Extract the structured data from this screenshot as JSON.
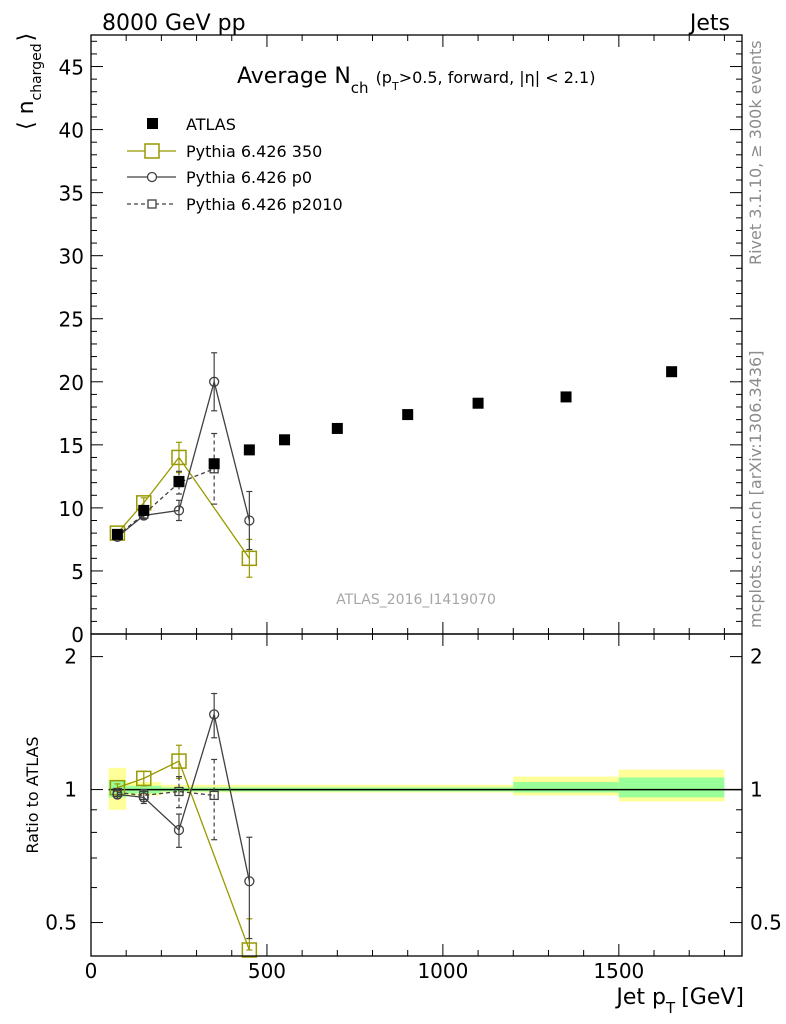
{
  "header": {
    "energy_label": "8000 GeV pp",
    "category_label": "Jets"
  },
  "side_labels": {
    "rivet": "Rivet 3.1.10, ≥ 300k events",
    "mcplots": "mcplots.cern.ch [arXiv:1306.3436]"
  },
  "watermark": "ATLAS_2016_I1419070",
  "chart_data": [
    {
      "type": "scatter",
      "panel": "main",
      "title_main": "Average N",
      "title_sub": "ch",
      "title_rest": "(p",
      "title_rest_sub": "T",
      "title_rest2": ">0.5, forward, |η| < 2.1)",
      "ylabel": "⟨ n",
      "ylabel_sub": "charged",
      "ylabel_close": "⟩",
      "xlim": [
        0,
        1850
      ],
      "ylim": [
        0,
        47.5
      ],
      "y_ticks": [
        0,
        5,
        10,
        15,
        20,
        25,
        30,
        35,
        40,
        45
      ],
      "y_tick_labels": [
        "0",
        "5",
        "10",
        "15",
        "20",
        "25",
        "30",
        "35",
        "40",
        "45"
      ],
      "legend_position": "top-left",
      "series": [
        {
          "name": "ATLAS",
          "style": "data",
          "color": "#000000",
          "x": [
            75,
            150,
            250,
            350,
            450,
            550,
            700,
            900,
            1100,
            1350,
            1650
          ],
          "y": [
            7.9,
            9.8,
            12.1,
            13.5,
            14.6,
            15.4,
            16.3,
            17.4,
            18.3,
            18.8,
            20.8
          ],
          "err": [
            0.2,
            0.2,
            0.2,
            0.2,
            0.2,
            0.2,
            0.2,
            0.2,
            0.2,
            0.2,
            0.3
          ]
        },
        {
          "name": "Pythia 6.426 350",
          "style": "big-square",
          "color": "#999900",
          "x": [
            75,
            150,
            250,
            450
          ],
          "y": [
            8.0,
            10.4,
            14.0,
            6.0
          ],
          "err": [
            0.2,
            0.4,
            1.2,
            1.5
          ]
        },
        {
          "name": "Pythia 6.426 p0",
          "style": "circle",
          "color": "#404040",
          "x": [
            75,
            150,
            250,
            350,
            450
          ],
          "y": [
            7.7,
            9.4,
            9.8,
            20.0,
            9.0
          ],
          "err": [
            0.2,
            0.3,
            0.8,
            2.3,
            2.3
          ]
        },
        {
          "name": "Pythia 6.426 p2010",
          "style": "small-square-dashed",
          "color": "#404040",
          "x": [
            75,
            150,
            250,
            350
          ],
          "y": [
            7.8,
            9.5,
            12.0,
            13.1
          ],
          "err": [
            0.2,
            0.3,
            0.9,
            2.8
          ]
        }
      ]
    },
    {
      "type": "scatter",
      "panel": "ratio",
      "ylabel": "Ratio to ATLAS",
      "xlabel": "Jet p",
      "xlabel_sub": "T",
      "xlabel_unit": "[GeV]",
      "xlim": [
        0,
        1850
      ],
      "ylim": [
        0.42,
        2.25
      ],
      "log_y": true,
      "x_ticks": [
        0,
        500,
        1000,
        1500
      ],
      "x_tick_labels": [
        "0",
        "500",
        "1000",
        "1500"
      ],
      "y_ticks": [
        0.5,
        1,
        2
      ],
      "y_tick_labels": [
        "0.5",
        "1",
        "2"
      ],
      "bands": [
        {
          "x_lo": 50,
          "x_hi": 100,
          "yellow": [
            0.9,
            1.12
          ],
          "green": [
            0.96,
            1.05
          ]
        },
        {
          "x_lo": 100,
          "x_hi": 200,
          "yellow": [
            0.97,
            1.04
          ],
          "green": [
            0.98,
            1.02
          ]
        },
        {
          "x_lo": 200,
          "x_hi": 1200,
          "yellow": [
            0.985,
            1.025
          ],
          "green": [
            0.99,
            1.012
          ]
        },
        {
          "x_lo": 1200,
          "x_hi": 1500,
          "yellow": [
            0.97,
            1.07
          ],
          "green": [
            0.985,
            1.04
          ]
        },
        {
          "x_lo": 1500,
          "x_hi": 1800,
          "yellow": [
            0.94,
            1.11
          ],
          "green": [
            0.96,
            1.065
          ]
        }
      ],
      "series": [
        {
          "name": "Pythia 6.426 350",
          "style": "big-square",
          "color": "#999900",
          "x": [
            75,
            150,
            250,
            450
          ],
          "y": [
            1.01,
            1.06,
            1.16,
            0.41
          ],
          "err": [
            0.02,
            0.04,
            0.1,
            0.1
          ]
        },
        {
          "name": "Pythia 6.426 p0",
          "style": "circle",
          "color": "#404040",
          "x": [
            75,
            150,
            250,
            350,
            450
          ],
          "y": [
            0.975,
            0.96,
            0.81,
            1.48,
            0.62
          ],
          "err": [
            0.02,
            0.03,
            0.07,
            0.17,
            0.16
          ]
        },
        {
          "name": "Pythia 6.426 p2010",
          "style": "small-square-dashed",
          "color": "#404040",
          "x": [
            75,
            150,
            250,
            350
          ],
          "y": [
            0.985,
            0.97,
            0.99,
            0.97
          ],
          "err": [
            0.02,
            0.03,
            0.08,
            0.2
          ]
        }
      ]
    }
  ]
}
